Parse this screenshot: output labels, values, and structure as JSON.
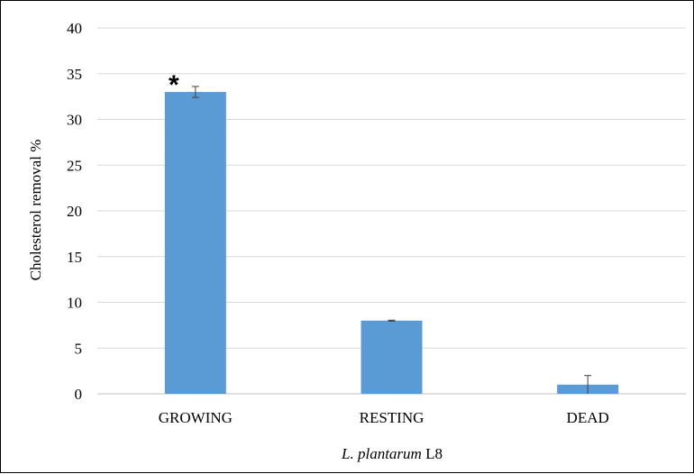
{
  "chart_data": {
    "type": "bar",
    "title": "",
    "xlabel_italic": "L. plantarum",
    "xlabel_rest": " L8",
    "ylabel": "Cholesterol removal %",
    "categories": [
      "GROWING",
      "RESTING",
      "DEAD"
    ],
    "values": [
      33,
      8,
      1
    ],
    "error": [
      0.6,
      0.05,
      1.0
    ],
    "ylim": [
      0,
      40
    ],
    "yticks": [
      0,
      5,
      10,
      15,
      20,
      25,
      30,
      35,
      40
    ],
    "grid": true,
    "bar_color": "#5b9bd5",
    "grid_color": "#d9d9d9",
    "annotations": [
      {
        "category": "GROWING",
        "text": "*"
      }
    ]
  }
}
